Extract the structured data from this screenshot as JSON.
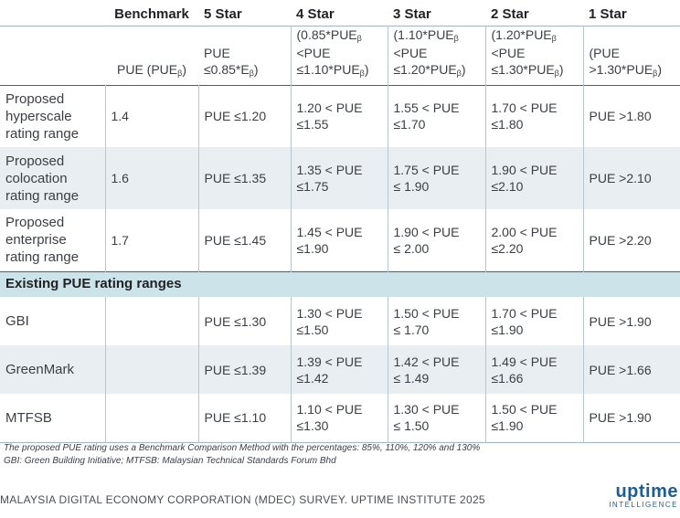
{
  "header": {
    "blank": "",
    "benchmark": "Benchmark",
    "star5": "5 Star",
    "star4": "4 Star",
    "star3": "3 Star",
    "star2": "2 Star",
    "star1": "1 Star"
  },
  "definitions": {
    "benchmark": {
      "t": "PUE (PUE",
      "s": "β",
      "e": ")"
    },
    "star5": {
      "l1": "PUE",
      "l2": "≤0.85*E",
      "s": "β",
      "e": ")"
    },
    "star4": {
      "l1a": "(0.85*PUE",
      "l1s": "β",
      "l2": "<PUE",
      "l3a": "≤1.10*PUE",
      "l3s": "β",
      "l3e": ")"
    },
    "star3": {
      "l1a": "(1.10*PUE",
      "l1s": "β",
      "l2": "<PUE",
      "l3a": "≤1.20*PUE",
      "l3s": "β",
      "l3e": ")"
    },
    "star2": {
      "l1a": "(1.20*PUE",
      "l1s": "β",
      "l2": "<PUE",
      "l3a": "≤1.30*PUE",
      "l3s": "β",
      "l3e": ")"
    },
    "star1": {
      "l1": "(PUE",
      "l2a": ">1.30*PUE",
      "l2s": "β",
      "l2e": ")"
    }
  },
  "proposed": [
    {
      "label": "Proposed hyperscale rating range",
      "benchmark": "1.4",
      "s5": "PUE ≤1.20",
      "s4": [
        "1.20 < PUE",
        "≤1.55"
      ],
      "s3": [
        "1.55 < PUE",
        "≤1.70"
      ],
      "s2": [
        "1.70 < PUE",
        "≤1.80"
      ],
      "s1": "PUE >1.80"
    },
    {
      "label": "Proposed colocation rating range",
      "benchmark": "1.6",
      "s5": "PUE ≤1.35",
      "s4": [
        "1.35 < PUE",
        "≤1.75"
      ],
      "s3": [
        "1.75 < PUE",
        "≤ 1.90"
      ],
      "s2": [
        "1.90 < PUE",
        "≤2.10"
      ],
      "s1": "PUE >2.10"
    },
    {
      "label": "Proposed enterprise rating range",
      "benchmark": "1.7",
      "s5": "PUE ≤1.45",
      "s4": [
        "1.45 < PUE",
        "≤1.90"
      ],
      "s3": [
        "1.90 < PUE",
        "≤ 2.00"
      ],
      "s2": [
        "2.00 < PUE",
        "≤2.20"
      ],
      "s1": "PUE >2.20"
    }
  ],
  "section_title": "Existing PUE rating ranges",
  "existing": [
    {
      "label": "GBI",
      "benchmark": "",
      "s5": "PUE ≤1.30",
      "s4": [
        "1.30 < PUE",
        "≤1.50"
      ],
      "s3": [
        "1.50 < PUE",
        "≤ 1.70"
      ],
      "s2": [
        "1.70 < PUE",
        "≤1.90"
      ],
      "s1": "PUE >1.90"
    },
    {
      "label": "GreenMark",
      "benchmark": "",
      "s5": "PUE ≤1.39",
      "s4": [
        "1.39 < PUE",
        "≤1.42"
      ],
      "s3": [
        "1.42 < PUE",
        "≤ 1.49"
      ],
      "s2": [
        "1.49 < PUE",
        "≤1.66"
      ],
      "s1": "PUE >1.66"
    },
    {
      "label": "MTFSB",
      "benchmark": "",
      "s5": "PUE ≤1.10",
      "s4": [
        "1.10 < PUE",
        "≤1.30"
      ],
      "s3": [
        "1.30 < PUE",
        "≤ 1.50"
      ],
      "s2": [
        "1.50 < PUE",
        "≤1.90"
      ],
      "s1": "PUE >1.90"
    }
  ],
  "notes": {
    "line1": "The proposed PUE rating uses a Benchmark Comparison Method with the percentages: 85%, 110%, 120% and 130%",
    "line2": "GBI: Green Building Initiative; MTFSB: Malaysian Technical Standards Forum Bhd"
  },
  "footer": {
    "source": "MALAYSIA DIGITAL ECONOMY CORPORATION (MDEC) SURVEY. UPTIME INSTITUTE 2025",
    "logo_main": "uptime",
    "logo_sub": "INTELLIGENCE"
  }
}
